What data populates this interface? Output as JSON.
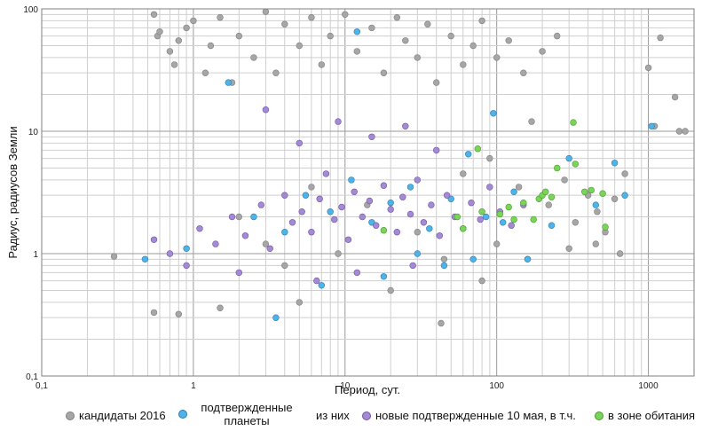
{
  "chart_data": {
    "type": "scatter",
    "xscale": "log",
    "yscale": "log",
    "xlim": [
      0.1,
      2000
    ],
    "ylim": [
      0.1,
      100
    ],
    "xlabel": "Период, сут.",
    "ylabel": "Радиус, радиусов Земли",
    "x_ticks": [
      {
        "value": 0.1,
        "label": "0,1"
      },
      {
        "value": 1,
        "label": "1"
      },
      {
        "value": 10,
        "label": "10"
      },
      {
        "value": 100,
        "label": "100"
      },
      {
        "value": 1000,
        "label": "1000"
      }
    ],
    "y_ticks": [
      {
        "value": 0.1,
        "label": "0,1"
      },
      {
        "value": 1,
        "label": "1"
      },
      {
        "value": 10,
        "label": "10"
      },
      {
        "value": 100,
        "label": "100"
      }
    ],
    "grid": true,
    "legend_position": "bottom",
    "series": [
      {
        "name": "кандидаты 2016",
        "color": "#a6a6a6",
        "stroke": "#7f7f7f",
        "points": [
          [
            0.55,
            90
          ],
          [
            0.58,
            60
          ],
          [
            0.6,
            65
          ],
          [
            0.7,
            45
          ],
          [
            0.75,
            35
          ],
          [
            0.8,
            55
          ],
          [
            0.9,
            70
          ],
          [
            1.0,
            80
          ],
          [
            1.2,
            30
          ],
          [
            1.3,
            50
          ],
          [
            1.5,
            85
          ],
          [
            1.8,
            25
          ],
          [
            2.0,
            60
          ],
          [
            2.5,
            40
          ],
          [
            3.0,
            95
          ],
          [
            3.5,
            30
          ],
          [
            4.0,
            75
          ],
          [
            5.0,
            50
          ],
          [
            6.0,
            85
          ],
          [
            7.0,
            35
          ],
          [
            8.0,
            60
          ],
          [
            10.0,
            90
          ],
          [
            12.0,
            45
          ],
          [
            15.0,
            70
          ],
          [
            18.0,
            30
          ],
          [
            22.0,
            85
          ],
          [
            25.0,
            55
          ],
          [
            30.0,
            40
          ],
          [
            35.0,
            75
          ],
          [
            40.0,
            25
          ],
          [
            50.0,
            60
          ],
          [
            60.0,
            35
          ],
          [
            70.0,
            50
          ],
          [
            80.0,
            80
          ],
          [
            100.0,
            40
          ],
          [
            120.0,
            55
          ],
          [
            150.0,
            30
          ],
          [
            200.0,
            45
          ],
          [
            250.0,
            60
          ],
          [
            1000.0,
            33
          ],
          [
            1200.0,
            58
          ],
          [
            1500.0,
            19
          ],
          [
            1600.0,
            10
          ],
          [
            1750.0,
            10
          ],
          [
            0.3,
            0.95
          ],
          [
            0.55,
            0.33
          ],
          [
            0.8,
            0.32
          ],
          [
            1.5,
            0.36
          ],
          [
            43.0,
            0.27
          ],
          [
            5.0,
            0.4
          ],
          [
            20.0,
            0.5
          ],
          [
            80.0,
            0.6
          ],
          [
            60.0,
            4.5
          ],
          [
            90.0,
            6.0
          ],
          [
            140.0,
            3.5
          ],
          [
            170.0,
            12.0
          ],
          [
            220.0,
            2.5
          ],
          [
            280.0,
            4.0
          ],
          [
            330.0,
            1.8
          ],
          [
            400.0,
            3.0
          ],
          [
            460.0,
            2.2
          ],
          [
            520.0,
            1.5
          ],
          [
            600.0,
            2.8
          ],
          [
            700.0,
            4.5
          ],
          [
            1100.0,
            11.0
          ],
          [
            2.0,
            2.0
          ],
          [
            3.0,
            1.2
          ],
          [
            4.0,
            0.8
          ],
          [
            6.0,
            3.5
          ],
          [
            9.0,
            1.0
          ],
          [
            14.0,
            2.5
          ],
          [
            30.0,
            1.5
          ],
          [
            45.0,
            0.9
          ],
          [
            100.0,
            1.2
          ],
          [
            160.0,
            0.9
          ],
          [
            300.0,
            1.1
          ],
          [
            450.0,
            1.2
          ],
          [
            650.0,
            1.0
          ]
        ]
      },
      {
        "name": "подтвержденные планеты",
        "color": "#4fb3e8",
        "stroke": "#2a7fb5",
        "points": [
          [
            0.48,
            0.9
          ],
          [
            0.9,
            1.1
          ],
          [
            1.7,
            25
          ],
          [
            3.5,
            0.3
          ],
          [
            7.0,
            0.55
          ],
          [
            12.0,
            65
          ],
          [
            18.0,
            0.65
          ],
          [
            30.0,
            1.0
          ],
          [
            45.0,
            0.8
          ],
          [
            70.0,
            0.9
          ],
          [
            95.0,
            14.0
          ],
          [
            130.0,
            3.2
          ],
          [
            160.0,
            0.9
          ],
          [
            230.0,
            1.7
          ],
          [
            300.0,
            6.0
          ],
          [
            450.0,
            2.5
          ],
          [
            600.0,
            5.5
          ],
          [
            700.0,
            3.0
          ],
          [
            1050.0,
            11.0
          ],
          [
            2.5,
            2.0
          ],
          [
            4.0,
            1.5
          ],
          [
            5.5,
            3.0
          ],
          [
            8.0,
            2.2
          ],
          [
            11.0,
            4.0
          ],
          [
            15.0,
            1.8
          ],
          [
            20.0,
            2.6
          ],
          [
            27.0,
            3.5
          ],
          [
            36.0,
            1.6
          ],
          [
            50.0,
            2.8
          ],
          [
            65.0,
            6.5
          ],
          [
            85.0,
            2.0
          ],
          [
            110.0,
            1.8
          ]
        ]
      },
      {
        "name": "новые подтвержденные 10 мая, в т.ч.",
        "color": "#a48ad4",
        "stroke": "#6f55a6",
        "points": [
          [
            0.55,
            1.3
          ],
          [
            0.7,
            1.0
          ],
          [
            0.9,
            0.8
          ],
          [
            1.1,
            1.6
          ],
          [
            1.4,
            1.2
          ],
          [
            1.8,
            2.0
          ],
          [
            2.2,
            1.4
          ],
          [
            2.8,
            2.5
          ],
          [
            3.2,
            1.1
          ],
          [
            4.0,
            3.0
          ],
          [
            4.5,
            1.8
          ],
          [
            5.2,
            2.2
          ],
          [
            6.0,
            1.5
          ],
          [
            6.8,
            2.8
          ],
          [
            7.5,
            4.5
          ],
          [
            8.5,
            1.9
          ],
          [
            9.5,
            2.4
          ],
          [
            10.5,
            1.3
          ],
          [
            11.5,
            3.2
          ],
          [
            13.0,
            2.0
          ],
          [
            14.5,
            2.7
          ],
          [
            16.0,
            1.7
          ],
          [
            18.0,
            3.6
          ],
          [
            20.0,
            2.3
          ],
          [
            22.0,
            1.5
          ],
          [
            24.0,
            2.9
          ],
          [
            27.0,
            2.1
          ],
          [
            30.0,
            4.0
          ],
          [
            33.0,
            1.8
          ],
          [
            37.0,
            2.5
          ],
          [
            42.0,
            1.4
          ],
          [
            47.0,
            3.0
          ],
          [
            53.0,
            2.0
          ],
          [
            60.0,
            1.6
          ],
          [
            68.0,
            2.6
          ],
          [
            78.0,
            1.9
          ],
          [
            90.0,
            3.5
          ],
          [
            105.0,
            2.2
          ],
          [
            125.0,
            1.7
          ],
          [
            150.0,
            2.5
          ],
          [
            3.0,
            15.0
          ],
          [
            5.0,
            8.0
          ],
          [
            9.0,
            12.0
          ],
          [
            15.0,
            9.0
          ],
          [
            25.0,
            11.0
          ],
          [
            40.0,
            7.0
          ],
          [
            2.0,
            0.7
          ],
          [
            6.5,
            0.6
          ],
          [
            12.0,
            0.7
          ],
          [
            28.0,
            0.8
          ]
        ]
      },
      {
        "name": "в зоне обитания",
        "color": "#7ad45a",
        "stroke": "#4a9b2e",
        "points": [
          [
            18.0,
            1.55
          ],
          [
            55.0,
            2.0
          ],
          [
            60.0,
            1.6
          ],
          [
            75.0,
            7.2
          ],
          [
            80.0,
            2.2
          ],
          [
            105.0,
            2.1
          ],
          [
            120.0,
            2.4
          ],
          [
            130.0,
            1.9
          ],
          [
            150.0,
            2.6
          ],
          [
            175.0,
            1.9
          ],
          [
            190.0,
            2.8
          ],
          [
            200.0,
            3.0
          ],
          [
            210.0,
            3.2
          ],
          [
            230.0,
            2.9
          ],
          [
            250.0,
            5.0
          ],
          [
            320.0,
            11.8
          ],
          [
            330.0,
            5.4
          ],
          [
            380.0,
            3.2
          ],
          [
            420.0,
            3.3
          ],
          [
            500.0,
            3.1
          ],
          [
            520.0,
            1.65
          ]
        ]
      }
    ]
  },
  "legend": [
    {
      "label": "кандидаты 2016",
      "color": "#a6a6a6"
    },
    {
      "label": "подтвержденные планеты",
      "color": "#4fb3e8"
    },
    {
      "label": "из них",
      "color": ""
    },
    {
      "label": "новые подтвержденные 10 мая, в т.ч.",
      "color": "#a48ad4"
    },
    {
      "label": "в зоне обитания",
      "color": "#7ad45a"
    }
  ]
}
